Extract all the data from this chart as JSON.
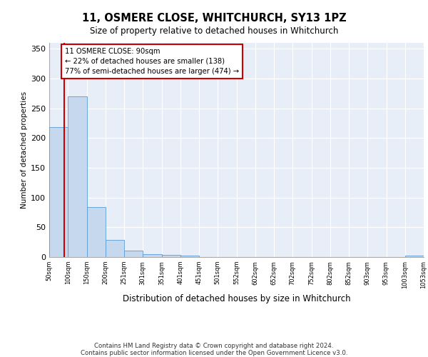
{
  "title": "11, OSMERE CLOSE, WHITCHURCH, SY13 1PZ",
  "subtitle": "Size of property relative to detached houses in Whitchurch",
  "xlabel": "Distribution of detached houses by size in Whitchurch",
  "ylabel": "Number of detached properties",
  "footnote1": "Contains HM Land Registry data © Crown copyright and database right 2024.",
  "footnote2": "Contains public sector information licensed under the Open Government Licence v3.0.",
  "annotation_line1": "11 OSMERE CLOSE: 90sqm",
  "annotation_line2": "← 22% of detached houses are smaller (138)",
  "annotation_line3": "77% of semi-detached houses are larger (474) →",
  "property_sqm": 90,
  "bar_color": "#c5d8ed",
  "bar_edge_color": "#5b9bd5",
  "annotation_box_color": "#cc0000",
  "property_line_color": "#cc0000",
  "background_color": "#ffffff",
  "plot_bg_color": "#e8eef7",
  "grid_color": "#ffffff",
  "bins": [
    50,
    100,
    150,
    200,
    251,
    301,
    351,
    401,
    451,
    501,
    552,
    602,
    652,
    702,
    752,
    802,
    852,
    903,
    953,
    1003,
    1053
  ],
  "bin_labels": [
    "50sqm",
    "100sqm",
    "150sqm",
    "200sqm",
    "251sqm",
    "301sqm",
    "351sqm",
    "401sqm",
    "451sqm",
    "501sqm",
    "552sqm",
    "602sqm",
    "652sqm",
    "702sqm",
    "752sqm",
    "802sqm",
    "852sqm",
    "903sqm",
    "953sqm",
    "1003sqm",
    "1053sqm"
  ],
  "values": [
    218,
    270,
    84,
    29,
    11,
    5,
    4,
    3,
    0,
    0,
    0,
    0,
    0,
    0,
    0,
    0,
    0,
    0,
    0,
    3
  ],
  "ylim": [
    0,
    360
  ],
  "yticks": [
    0,
    50,
    100,
    150,
    200,
    250,
    300,
    350
  ]
}
